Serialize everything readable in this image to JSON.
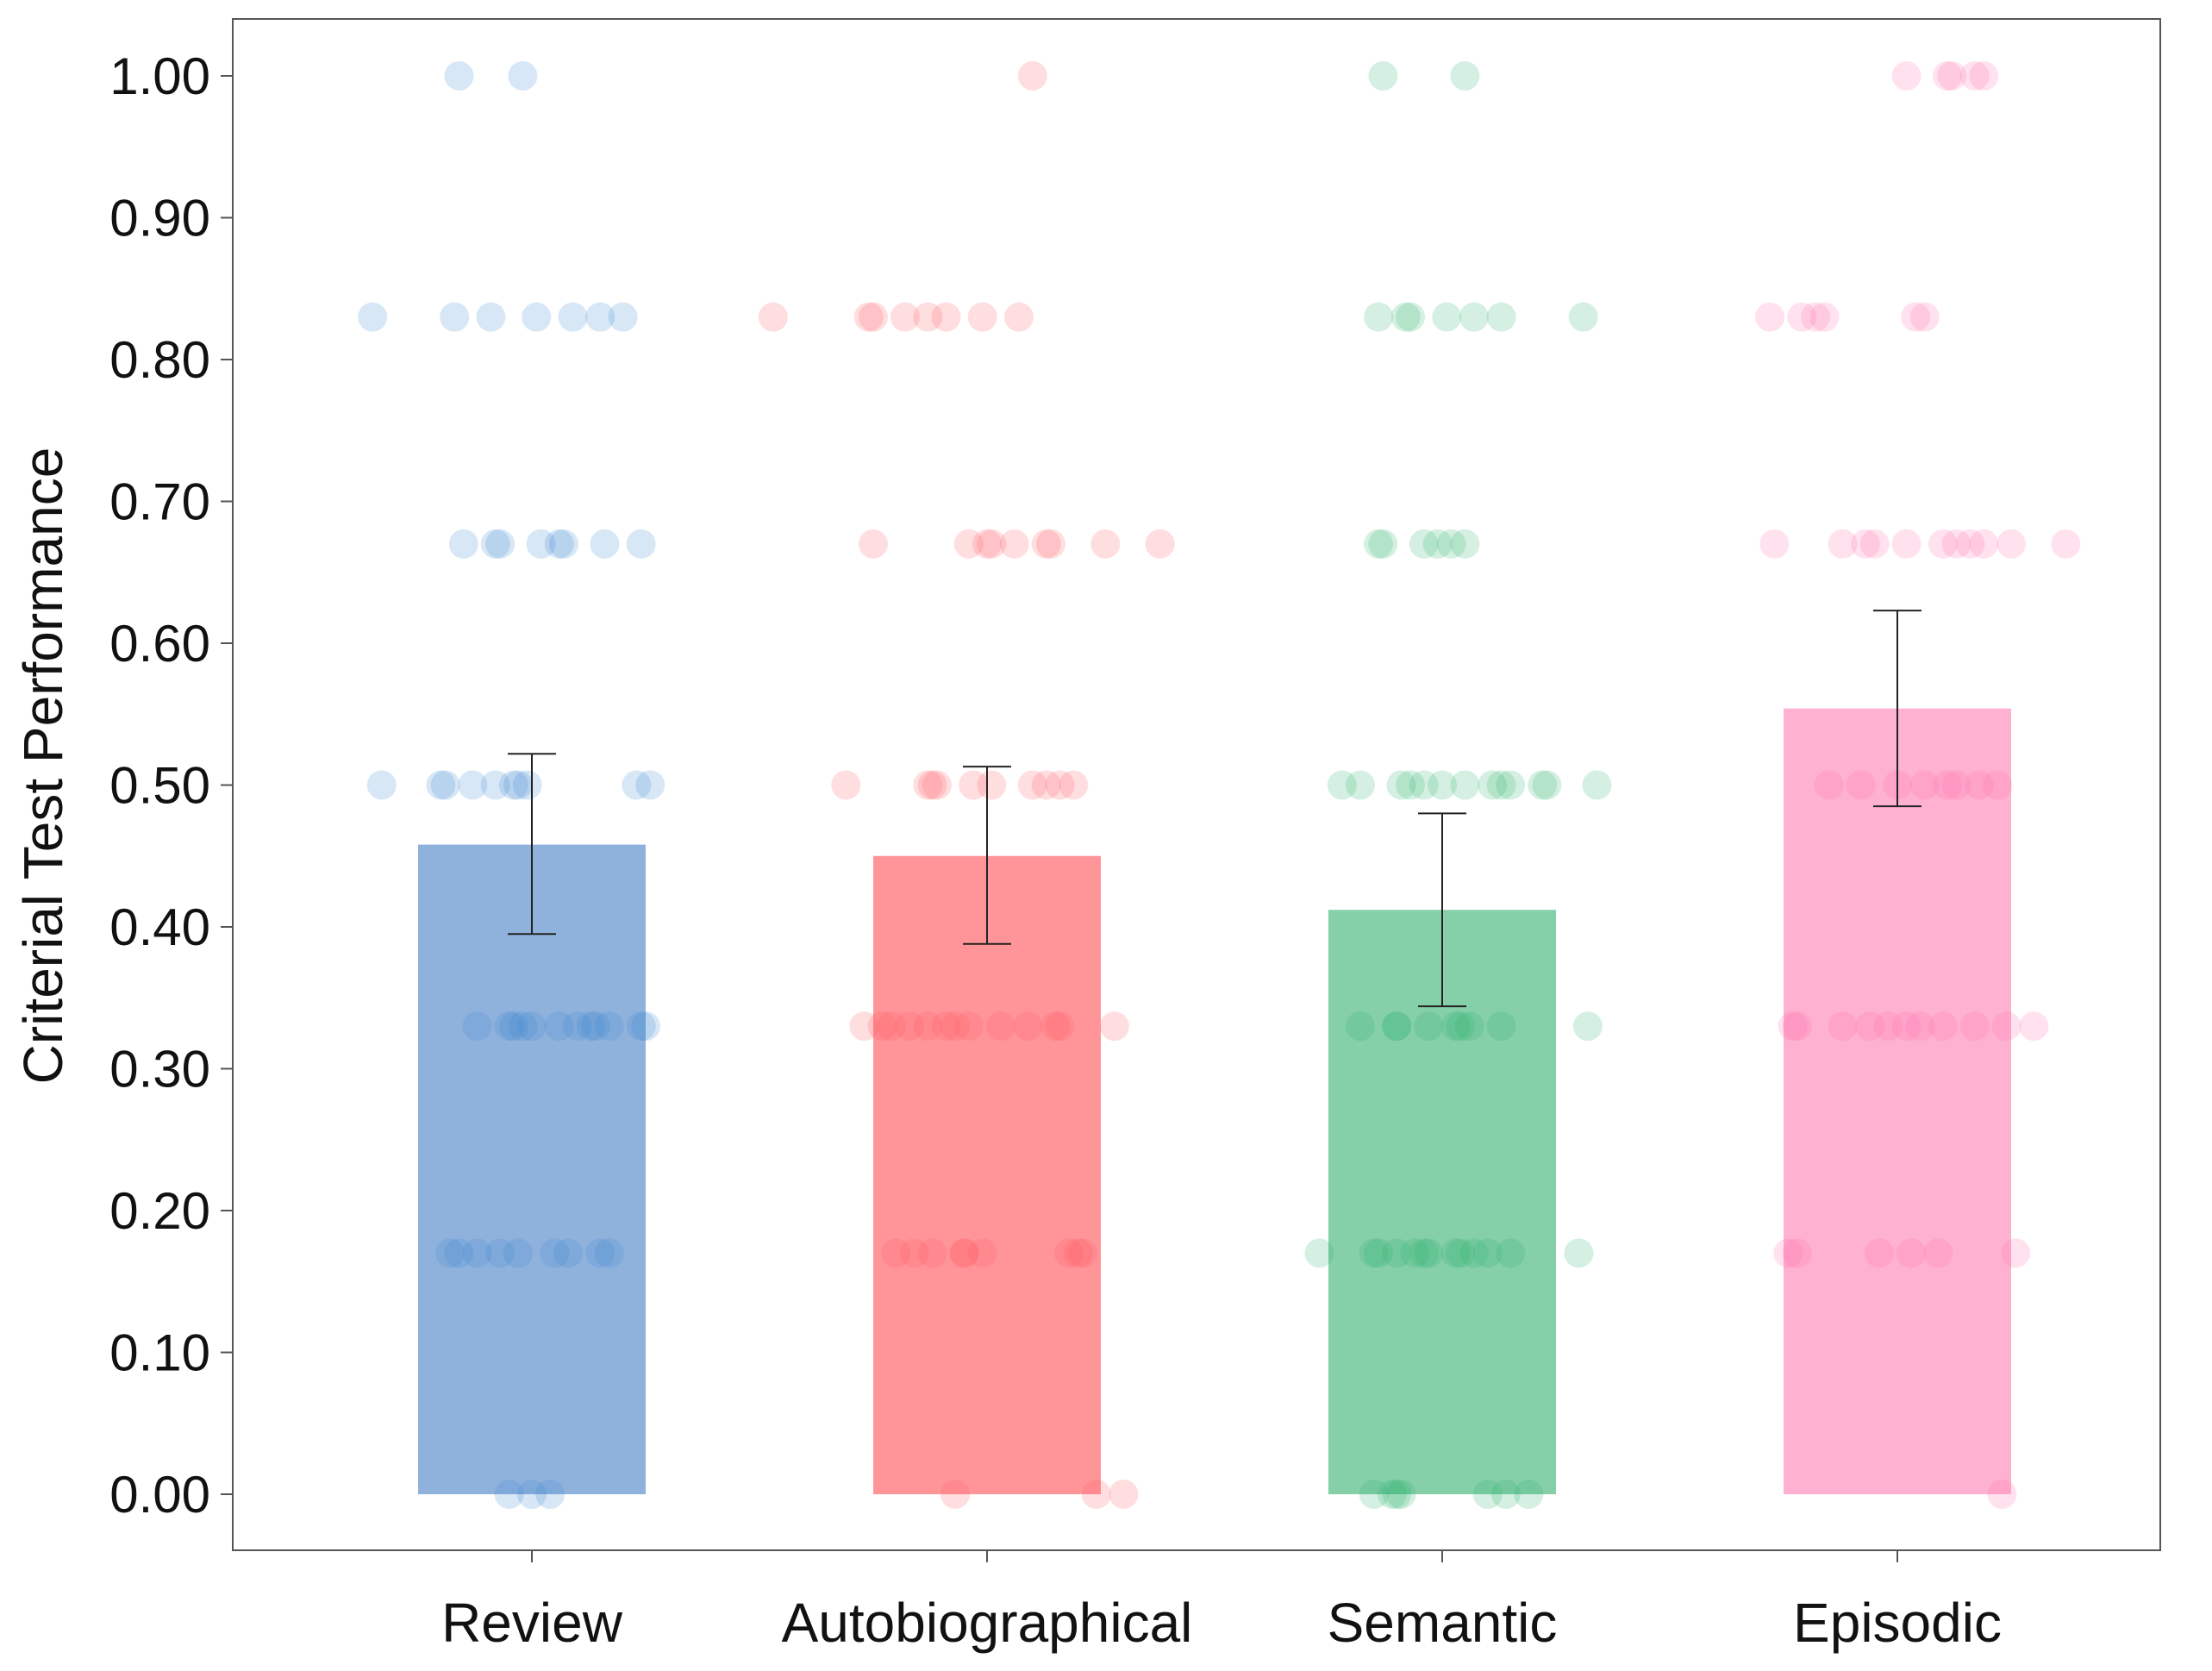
{
  "chart_data": {
    "type": "bar",
    "title": "",
    "xlabel": "",
    "ylabel": "Criterial Test Performance",
    "ylim": [
      0,
      1
    ],
    "yticks": [
      "0.00",
      "0.10",
      "0.20",
      "0.30",
      "0.40",
      "0.50",
      "0.60",
      "0.70",
      "0.80",
      "0.90",
      "1.00"
    ],
    "grid": false,
    "categories": [
      "Review",
      "Autobiographical",
      "Semantic",
      "Episodic"
    ],
    "values": [
      0.458,
      0.45,
      0.412,
      0.554
    ],
    "error_bars": [
      {
        "low": 0.395,
        "high": 0.522
      },
      {
        "low": 0.388,
        "high": 0.513
      },
      {
        "low": 0.344,
        "high": 0.48
      },
      {
        "low": 0.485,
        "high": 0.623
      }
    ],
    "bar_colors": [
      "#8fb2dc",
      "#ff9599",
      "#85cfa9",
      "#ffb1d1"
    ],
    "point_colors": [
      "#3a86d0",
      "#ff5a64",
      "#2cb46e",
      "#ff6faa"
    ],
    "points": [
      [
        {
          "y": 1.0,
          "jitter": [
            -0.16,
            -0.02
          ]
        },
        {
          "y": 0.83,
          "jitter": [
            -0.35,
            -0.17,
            -0.09,
            0.01,
            0.09,
            0.15,
            0.2
          ]
        },
        {
          "y": 0.67,
          "jitter": [
            -0.15,
            -0.08,
            -0.07,
            0.02,
            0.06,
            0.07,
            0.16,
            0.24
          ]
        },
        {
          "y": 0.5,
          "jitter": [
            -0.33,
            -0.2,
            -0.19,
            -0.13,
            -0.08,
            -0.04,
            -0.03,
            -0.01,
            0.23,
            0.26
          ]
        },
        {
          "y": 0.33,
          "jitter": [
            -0.12,
            -0.05,
            -0.04,
            -0.02,
            0.0,
            0.06,
            0.1,
            0.13,
            0.14,
            0.17,
            0.24,
            0.25
          ]
        },
        {
          "y": 0.17,
          "jitter": [
            -0.18,
            -0.16,
            -0.12,
            -0.07,
            -0.03,
            0.05,
            0.08,
            0.15,
            0.17
          ]
        },
        {
          "y": 0.0,
          "jitter": [
            -0.05,
            0.0,
            0.04
          ]
        }
      ],
      [
        {
          "y": 1.0,
          "jitter": [
            0.1
          ]
        },
        {
          "y": 0.83,
          "jitter": [
            -0.47,
            -0.26,
            -0.25,
            -0.18,
            -0.13,
            -0.09,
            -0.01,
            0.07
          ]
        },
        {
          "y": 0.67,
          "jitter": [
            -0.25,
            -0.04,
            0.0,
            0.01,
            0.06,
            0.13,
            0.14,
            0.26,
            0.38
          ]
        },
        {
          "y": 0.5,
          "jitter": [
            -0.31,
            -0.13,
            -0.12,
            -0.11,
            -0.03,
            0.01,
            0.1,
            0.13,
            0.16,
            0.19
          ]
        },
        {
          "y": 0.33,
          "jitter": [
            -0.27,
            -0.23,
            -0.21,
            -0.17,
            -0.13,
            -0.09,
            -0.07,
            -0.04,
            0.03,
            0.09,
            0.15,
            0.16,
            0.28
          ]
        },
        {
          "y": 0.17,
          "jitter": [
            -0.2,
            -0.16,
            -0.12,
            -0.05,
            -0.05,
            -0.01,
            0.18,
            0.2,
            0.21
          ]
        },
        {
          "y": 0.0,
          "jitter": [
            -0.07,
            0.24,
            0.3
          ]
        }
      ],
      [
        {
          "y": 1.0,
          "jitter": [
            -0.13,
            0.05
          ]
        },
        {
          "y": 0.83,
          "jitter": [
            -0.14,
            -0.08,
            -0.07,
            0.01,
            0.07,
            0.13,
            0.31
          ]
        },
        {
          "y": 0.67,
          "jitter": [
            -0.14,
            -0.13,
            -0.04,
            -0.01,
            0.02,
            0.05
          ]
        },
        {
          "y": 0.5,
          "jitter": [
            -0.22,
            -0.18,
            -0.09,
            -0.07,
            -0.04,
            0.0,
            0.05,
            0.11,
            0.13,
            0.15,
            0.22,
            0.23,
            0.34
          ]
        },
        {
          "y": 0.33,
          "jitter": [
            -0.18,
            -0.1,
            -0.1,
            -0.03,
            0.03,
            0.04,
            0.06,
            0.13,
            0.32
          ]
        },
        {
          "y": 0.17,
          "jitter": [
            -0.27,
            -0.15,
            -0.14,
            -0.1,
            -0.06,
            -0.04,
            -0.03,
            0.03,
            0.04,
            0.07,
            0.1,
            0.15,
            0.3
          ]
        },
        {
          "y": 0.0,
          "jitter": [
            -0.15,
            -0.11,
            -0.1,
            -0.09,
            0.1,
            0.14,
            0.19
          ]
        }
      ],
      [
        {
          "y": 1.0,
          "jitter": [
            0.02,
            0.11,
            0.12,
            0.17,
            0.19
          ]
        },
        {
          "y": 0.83,
          "jitter": [
            -0.28,
            -0.21,
            -0.18,
            -0.16,
            0.04,
            0.06
          ]
        },
        {
          "y": 0.67,
          "jitter": [
            -0.27,
            -0.12,
            -0.07,
            -0.05,
            0.02,
            0.1,
            0.13,
            0.16,
            0.19,
            0.25,
            0.37
          ]
        },
        {
          "y": 0.5,
          "jitter": [
            -0.15,
            -0.08,
            0.0,
            0.06,
            0.11,
            0.13,
            0.18,
            0.22
          ]
        },
        {
          "y": 0.33,
          "jitter": [
            -0.22,
            -0.23,
            -0.12,
            -0.06,
            -0.02,
            0.02,
            0.05,
            0.1,
            0.17,
            0.24,
            0.3
          ]
        },
        {
          "y": 0.17,
          "jitter": [
            -0.24,
            -0.22,
            -0.04,
            0.03,
            0.09,
            0.26
          ]
        },
        {
          "y": 0.0,
          "jitter": [
            0.23
          ]
        }
      ]
    ]
  }
}
